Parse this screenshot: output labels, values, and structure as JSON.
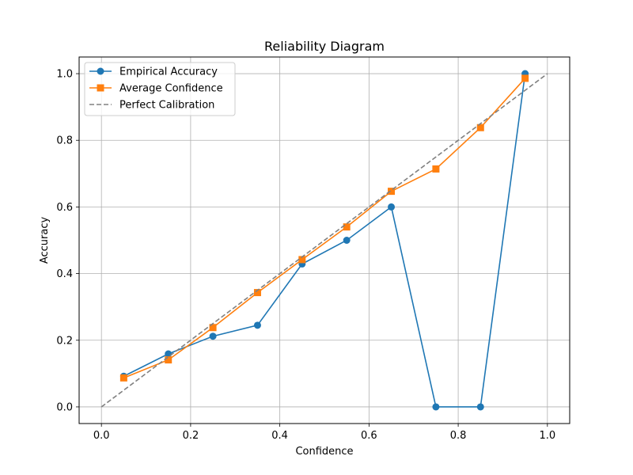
{
  "chart_data": {
    "type": "line",
    "title": "Reliability Diagram",
    "xlabel": "Confidence",
    "ylabel": "Accuracy",
    "xlim": [
      -0.05,
      1.05
    ],
    "ylim": [
      -0.05,
      1.05
    ],
    "grid": true,
    "legend_position": "top-left",
    "xticks": [
      0.0,
      0.2,
      0.4,
      0.6,
      0.8,
      1.0
    ],
    "xtick_labels": [
      "0.0",
      "0.2",
      "0.4",
      "0.6",
      "0.8",
      "1.0"
    ],
    "yticks": [
      0.0,
      0.2,
      0.4,
      0.6,
      0.8,
      1.0
    ],
    "ytick_labels": [
      "0.0",
      "0.2",
      "0.4",
      "0.6",
      "0.8",
      "1.0"
    ],
    "series": [
      {
        "name": "Empirical Accuracy",
        "color": "#1f77b4",
        "marker": "circle",
        "style": "solid",
        "x": [
          0.05,
          0.15,
          0.25,
          0.35,
          0.45,
          0.55,
          0.65,
          0.75,
          0.85,
          0.95
        ],
        "y": [
          0.092,
          0.159,
          0.212,
          0.245,
          0.429,
          0.5,
          0.6,
          0.0,
          0.0,
          1.0
        ]
      },
      {
        "name": "Average Confidence",
        "color": "#ff7f0e",
        "marker": "square",
        "style": "solid",
        "x": [
          0.05,
          0.15,
          0.25,
          0.35,
          0.45,
          0.55,
          0.65,
          0.75,
          0.85,
          0.95
        ],
        "y": [
          0.087,
          0.141,
          0.238,
          0.343,
          0.442,
          0.54,
          0.647,
          0.714,
          0.838,
          0.986
        ]
      },
      {
        "name": "Perfect Calibration",
        "color": "#808080",
        "marker": "none",
        "style": "dashed",
        "x": [
          0.0,
          1.0
        ],
        "y": [
          0.0,
          1.0
        ]
      }
    ]
  }
}
